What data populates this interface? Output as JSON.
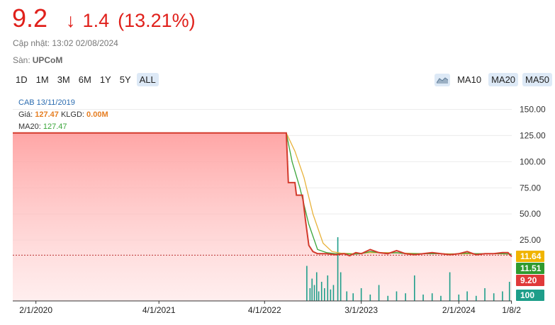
{
  "header": {
    "price": "9.2",
    "change_arrow": "↓",
    "change": "1.4",
    "change_pct": "(13.21%)",
    "updated": "Cập nhật: 13:02 02/08/2024",
    "exchange_label": "Sàn:",
    "exchange": "UPCoM",
    "color_down": "#e0201b"
  },
  "ranges": [
    "1D",
    "1M",
    "3M",
    "6M",
    "1Y",
    "5Y",
    "ALL"
  ],
  "active_range": "ALL",
  "ma_controls": {
    "area_icon": "area-chart-icon",
    "items": [
      "MA10",
      "MA20",
      "MA50"
    ],
    "active": "MA20"
  },
  "info": {
    "symbol_date": "CAB 13/11/2019",
    "price_label": "Giá:",
    "price_value": "127.47",
    "volume_label": "KLGD:",
    "volume_value": "0.00M",
    "ma20_label": "MA20:",
    "ma20_value": "127.47"
  },
  "chart_data": {
    "type": "area",
    "ylim": [
      0,
      150
    ],
    "yticks": [
      150,
      125,
      100,
      75,
      50,
      25
    ],
    "ytick_labels": [
      "150.00",
      "125.00",
      "100.00",
      "75.00",
      "50.00",
      "25.00"
    ],
    "xticks": [
      {
        "date": "2020-02-01",
        "label": "2/1/2020"
      },
      {
        "date": "2021-04-01",
        "label": "4/1/2021"
      },
      {
        "date": "2022-04-01",
        "label": "4/1/2022"
      },
      {
        "date": "2023-03-01",
        "label": "3/1/2023"
      },
      {
        "date": "2024-02-01",
        "label": "2/1/2024"
      },
      {
        "date": "2024-08-01",
        "label": "1/8/2"
      }
    ],
    "xlim": [
      "2019-11-13",
      "2024-08-02"
    ],
    "reference_price": 10.6,
    "series": [
      {
        "color": "#d33a2c",
        "points": [
          [
            "2019-11-13",
            127.47
          ],
          [
            "2022-06-15",
            127.47
          ],
          [
            "2022-06-22",
            80
          ],
          [
            "2022-07-15",
            80
          ],
          [
            "2022-07-20",
            68
          ],
          [
            "2022-08-10",
            68
          ],
          [
            "2022-08-20",
            45
          ],
          [
            "2022-09-01",
            20
          ],
          [
            "2022-09-15",
            14
          ],
          [
            "2022-10-01",
            12
          ],
          [
            "2022-11-01",
            12
          ],
          [
            "2022-12-01",
            11
          ],
          [
            "2023-01-01",
            12
          ],
          [
            "2023-01-20",
            10
          ],
          [
            "2023-02-10",
            13
          ],
          [
            "2023-03-01",
            12
          ],
          [
            "2023-04-01",
            16
          ],
          [
            "2023-05-01",
            13
          ],
          [
            "2023-06-01",
            12
          ],
          [
            "2023-07-01",
            15
          ],
          [
            "2023-08-01",
            12
          ],
          [
            "2023-09-01",
            11
          ],
          [
            "2023-10-01",
            12
          ],
          [
            "2023-11-01",
            13
          ],
          [
            "2023-12-01",
            12
          ],
          [
            "2024-01-01",
            11
          ],
          [
            "2024-02-01",
            12
          ],
          [
            "2024-03-01",
            14
          ],
          [
            "2024-04-01",
            11
          ],
          [
            "2024-05-01",
            12
          ],
          [
            "2024-06-01",
            12
          ],
          [
            "2024-07-01",
            13
          ],
          [
            "2024-07-20",
            13
          ],
          [
            "2024-08-02",
            9.2
          ]
        ]
      },
      {
        "name": "MA20",
        "color": "#3aa53a",
        "points": [
          [
            "2019-11-13",
            127.47
          ],
          [
            "2022-06-15",
            127.47
          ],
          [
            "2022-07-05",
            100
          ],
          [
            "2022-08-01",
            75
          ],
          [
            "2022-09-01",
            40
          ],
          [
            "2022-10-01",
            16
          ],
          [
            "2022-11-01",
            13
          ],
          [
            "2022-12-01",
            12
          ],
          [
            "2023-01-01",
            12
          ],
          [
            "2023-02-01",
            11.5
          ],
          [
            "2023-03-01",
            12
          ],
          [
            "2023-04-01",
            14
          ],
          [
            "2023-05-01",
            13
          ],
          [
            "2023-06-01",
            12.5
          ],
          [
            "2023-07-01",
            13
          ],
          [
            "2023-08-01",
            12
          ],
          [
            "2023-09-01",
            12
          ],
          [
            "2023-10-01",
            12
          ],
          [
            "2023-11-01",
            12
          ],
          [
            "2023-12-01",
            12
          ],
          [
            "2024-01-01",
            11.5
          ],
          [
            "2024-02-01",
            12
          ],
          [
            "2024-03-01",
            12.5
          ],
          [
            "2024-04-01",
            12
          ],
          [
            "2024-05-01",
            12
          ],
          [
            "2024-06-01",
            12
          ],
          [
            "2024-07-01",
            12
          ],
          [
            "2024-08-02",
            11.51
          ]
        ]
      },
      {
        "name": "MA50",
        "color": "#e8b23a",
        "points": [
          [
            "2019-11-13",
            127.47
          ],
          [
            "2022-06-15",
            127.47
          ],
          [
            "2022-07-15",
            110
          ],
          [
            "2022-08-15",
            85
          ],
          [
            "2022-09-15",
            50
          ],
          [
            "2022-10-20",
            22
          ],
          [
            "2022-11-20",
            14
          ],
          [
            "2022-12-20",
            12.5
          ],
          [
            "2023-02-01",
            12
          ],
          [
            "2023-04-01",
            13
          ],
          [
            "2023-06-01",
            13
          ],
          [
            "2023-08-01",
            12.5
          ],
          [
            "2023-10-01",
            12
          ],
          [
            "2023-12-01",
            12
          ],
          [
            "2024-02-01",
            11.8
          ],
          [
            "2024-04-01",
            12
          ],
          [
            "2024-06-01",
            11.9
          ],
          [
            "2024-08-02",
            11.64
          ]
        ]
      }
    ],
    "volume_bars": [
      [
        "2022-08-25",
        55
      ],
      [
        "2022-09-05",
        20
      ],
      [
        "2022-09-12",
        35
      ],
      [
        "2022-09-20",
        25
      ],
      [
        "2022-09-28",
        45
      ],
      [
        "2022-10-05",
        15
      ],
      [
        "2022-10-15",
        30
      ],
      [
        "2022-10-25",
        20
      ],
      [
        "2022-11-05",
        40
      ],
      [
        "2022-11-15",
        18
      ],
      [
        "2022-11-25",
        25
      ],
      [
        "2022-12-10",
        100
      ],
      [
        "2022-12-20",
        45
      ],
      [
        "2023-01-10",
        15
      ],
      [
        "2023-02-01",
        12
      ],
      [
        "2023-03-01",
        20
      ],
      [
        "2023-04-01",
        10
      ],
      [
        "2023-05-01",
        25
      ],
      [
        "2023-06-01",
        8
      ],
      [
        "2023-07-01",
        15
      ],
      [
        "2023-08-01",
        12
      ],
      [
        "2023-09-01",
        40
      ],
      [
        "2023-10-01",
        10
      ],
      [
        "2023-11-01",
        12
      ],
      [
        "2023-12-01",
        8
      ],
      [
        "2024-01-01",
        45
      ],
      [
        "2024-02-01",
        10
      ],
      [
        "2024-03-01",
        15
      ],
      [
        "2024-04-01",
        8
      ],
      [
        "2024-05-01",
        20
      ],
      [
        "2024-06-01",
        12
      ],
      [
        "2024-07-01",
        15
      ],
      [
        "2024-07-25",
        30
      ]
    ],
    "volume_max": 100,
    "badges": [
      {
        "label": "11.64",
        "color": "#f0b400"
      },
      {
        "label": "11.51",
        "color": "#2f9a2f"
      },
      {
        "label": "9.20",
        "color": "#e03a3a"
      },
      {
        "label": "100",
        "color": "#1e9e8a"
      }
    ]
  }
}
